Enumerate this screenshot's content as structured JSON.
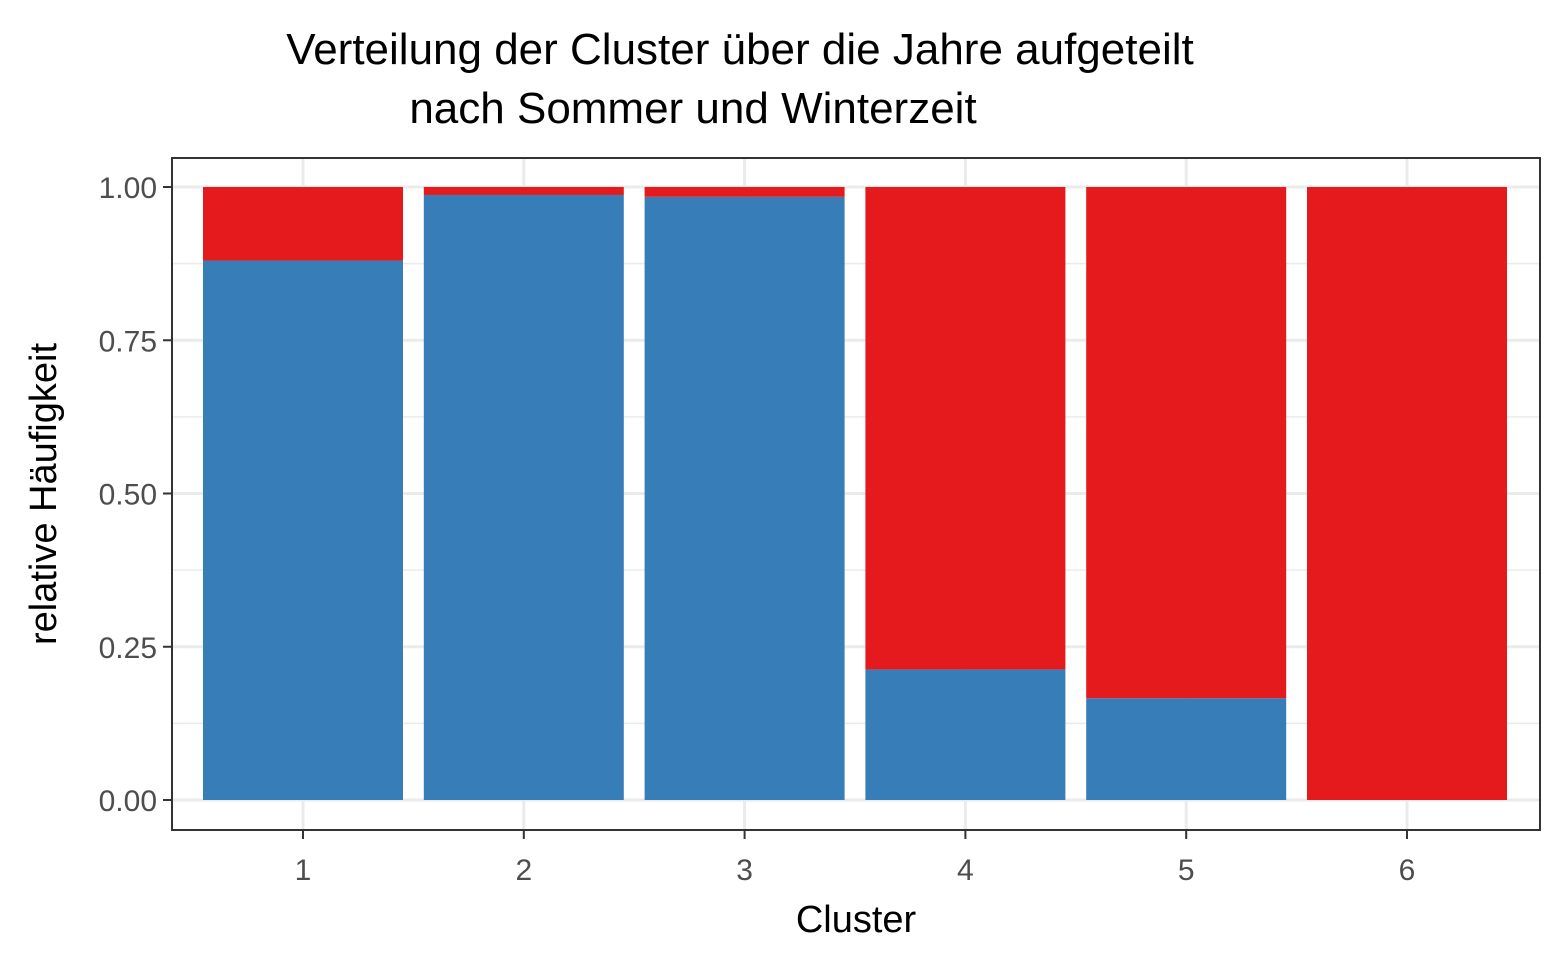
{
  "chart_data": {
    "type": "bar",
    "stacked": true,
    "normalized": true,
    "title": "Verteilung der Cluster über die Jahre aufgeteilt",
    "subtitle": "nach Sommer und Winterzeit",
    "xlabel": "Cluster",
    "ylabel": "relative Häufigkeit",
    "categories": [
      "1",
      "2",
      "3",
      "4",
      "5",
      "6"
    ],
    "ylim": [
      0,
      1
    ],
    "yticks": [
      "0.00",
      "0.25",
      "0.50",
      "0.75",
      "1.00"
    ],
    "grid": true,
    "legend": "none",
    "series": [
      {
        "color": "#377EB8",
        "values": [
          0.88,
          0.987,
          0.984,
          0.213,
          0.166,
          0.0
        ]
      },
      {
        "color": "#E41A1C",
        "values": [
          0.12,
          0.013,
          0.016,
          0.787,
          0.834,
          1.0
        ]
      }
    ]
  },
  "colors": {
    "grid": "#ebebeb",
    "panel_border": "#333333",
    "tick": "#333333",
    "background": "#ffffff"
  }
}
